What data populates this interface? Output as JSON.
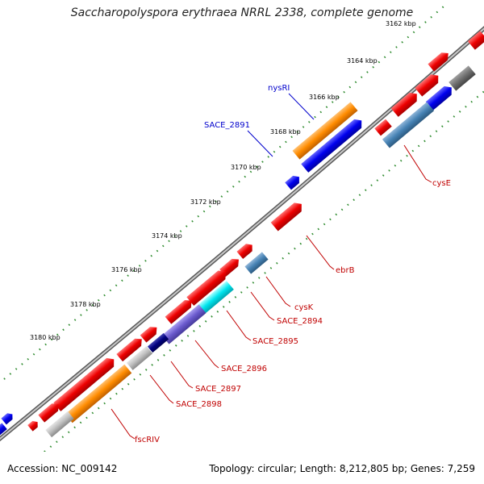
{
  "title": "Saccharopolyspora erythraea NRRL 2338, complete genome",
  "footer": {
    "accession": "Accession: NC_009142",
    "summary": "Topology: circular; Length: 8,212,805 bp; Genes: 7,259"
  },
  "colors": {
    "backbone": "#8c8c8c",
    "tick_dots": "#2e8b2e",
    "label_red": "#c00000",
    "label_blue": "#0000cc",
    "gene_red": "#ee0000",
    "gene_blue": "#0000ee",
    "gene_orange": "#ff8c00",
    "gene_steelblue": "#4682b4",
    "gene_cyan": "#00e5ee",
    "gene_purple": "#6a5acd",
    "gene_navy": "#000080",
    "gene_gray": "#bebebe",
    "gene_darkgray": "#6e6e6e"
  },
  "scale_labels": [
    "3162 kbp",
    "3164 kbp",
    "3166 kbp",
    "3168 kbp",
    "3170 kbp",
    "3172 kbp",
    "3174 kbp",
    "3176 kbp",
    "3178 kbp",
    "3180 kbp"
  ],
  "gene_labels": [
    {
      "name": "nysRI",
      "color": "blue"
    },
    {
      "name": "SACE_2891",
      "color": "blue"
    },
    {
      "name": "cysE",
      "color": "red"
    },
    {
      "name": "ebrB",
      "color": "red"
    },
    {
      "name": "cysK",
      "color": "red"
    },
    {
      "name": "SACE_2894",
      "color": "red"
    },
    {
      "name": "SACE_2895",
      "color": "red"
    },
    {
      "name": "SACE_2896",
      "color": "red"
    },
    {
      "name": "SACE_2897",
      "color": "red"
    },
    {
      "name": "SACE_2898",
      "color": "red"
    },
    {
      "name": "fscRIV",
      "color": "red"
    }
  ]
}
